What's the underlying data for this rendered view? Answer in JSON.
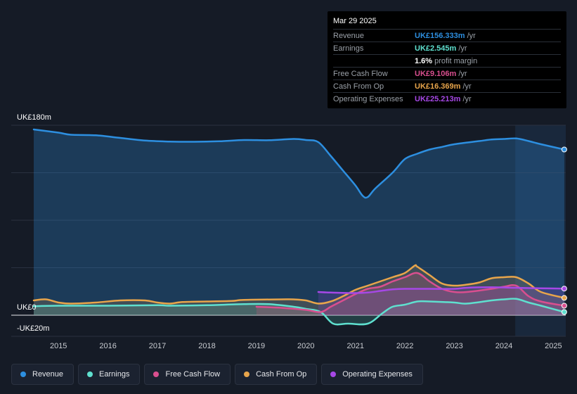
{
  "tooltip": {
    "date": "Mar 29 2025",
    "rows": [
      {
        "label": "Revenue",
        "value": "UK£156.333m",
        "unit": "/yr",
        "color": "#2d8fe0"
      },
      {
        "label": "Earnings",
        "value": "UK£2.545m",
        "unit": "/yr",
        "color": "#5fe0cf"
      },
      {
        "label": "",
        "value": "1.6%",
        "unit": "profit margin",
        "color": "#ffffff"
      },
      {
        "label": "Free Cash Flow",
        "value": "UK£9.106m",
        "unit": "/yr",
        "color": "#d94f8f"
      },
      {
        "label": "Cash From Op",
        "value": "UK£16.369m",
        "unit": "/yr",
        "color": "#e8a54b"
      },
      {
        "label": "Operating Expenses",
        "value": "UK£25.213m",
        "unit": "/yr",
        "color": "#a648e6"
      }
    ]
  },
  "chart_data": {
    "type": "line",
    "title": "",
    "xlabel": "",
    "ylabel": "",
    "ylim": [
      -20,
      180
    ],
    "y_tick_labels": [
      "UK£180m",
      "UK£0",
      "-UK£20m"
    ],
    "x_ticks": [
      2015,
      2016,
      2017,
      2018,
      2019,
      2020,
      2021,
      2022,
      2023,
      2024,
      2025
    ],
    "x_tick_labels": [
      "2015",
      "2016",
      "2017",
      "2018",
      "2019",
      "2020",
      "2021",
      "2022",
      "2023",
      "2024",
      "2025"
    ],
    "x_range": [
      2014.5,
      2025.25
    ],
    "highlight_from": 2024.23,
    "series": [
      {
        "name": "Revenue",
        "color": "#2d8fe0",
        "fill": true,
        "points": [
          [
            2014.5,
            176
          ],
          [
            2015.0,
            173
          ],
          [
            2015.25,
            171
          ],
          [
            2015.75,
            170.5
          ],
          [
            2016.25,
            168
          ],
          [
            2016.75,
            165.5
          ],
          [
            2017.25,
            164.5
          ],
          [
            2017.75,
            164.3
          ],
          [
            2018.25,
            164.8
          ],
          [
            2018.75,
            166
          ],
          [
            2019.25,
            165.8
          ],
          [
            2019.75,
            167
          ],
          [
            2020.0,
            166
          ],
          [
            2020.25,
            164
          ],
          [
            2020.5,
            151
          ],
          [
            2020.75,
            137
          ],
          [
            2021.0,
            123
          ],
          [
            2021.15,
            113
          ],
          [
            2021.25,
            112
          ],
          [
            2021.4,
            120
          ],
          [
            2021.75,
            135
          ],
          [
            2022.0,
            148
          ],
          [
            2022.25,
            153
          ],
          [
            2022.5,
            157
          ],
          [
            2022.75,
            159.5
          ],
          [
            2023.0,
            162
          ],
          [
            2023.5,
            165
          ],
          [
            2023.75,
            166.5
          ],
          [
            2024.0,
            167
          ],
          [
            2024.25,
            167.5
          ],
          [
            2024.5,
            165
          ],
          [
            2024.75,
            162
          ],
          [
            2025.22,
            157
          ]
        ]
      },
      {
        "name": "Earnings",
        "color": "#5fe0cf",
        "fill": true,
        "points": [
          [
            2014.5,
            8.5
          ],
          [
            2015.0,
            9
          ],
          [
            2016.0,
            9
          ],
          [
            2017.0,
            9.5
          ],
          [
            2017.25,
            9
          ],
          [
            2018.0,
            9.5
          ],
          [
            2018.75,
            10.5
          ],
          [
            2019.25,
            10.5
          ],
          [
            2019.75,
            8
          ],
          [
            2020.0,
            6
          ],
          [
            2020.3,
            3
          ],
          [
            2020.55,
            -8
          ],
          [
            2020.85,
            -8
          ],
          [
            2021.25,
            -8
          ],
          [
            2021.55,
            2
          ],
          [
            2021.75,
            8
          ],
          [
            2022.0,
            10
          ],
          [
            2022.25,
            13
          ],
          [
            2022.5,
            13
          ],
          [
            2023.0,
            12
          ],
          [
            2023.25,
            11
          ],
          [
            2023.75,
            14
          ],
          [
            2024.0,
            15
          ],
          [
            2024.25,
            15.5
          ],
          [
            2024.5,
            12
          ],
          [
            2024.75,
            9
          ],
          [
            2025.22,
            3
          ]
        ]
      },
      {
        "name": "Free Cash Flow",
        "color": "#d94f8f",
        "fill": true,
        "points": [
          [
            2019.0,
            8
          ],
          [
            2019.5,
            7
          ],
          [
            2020.0,
            5
          ],
          [
            2020.3,
            3
          ],
          [
            2020.5,
            8
          ],
          [
            2020.75,
            14
          ],
          [
            2021.0,
            20
          ],
          [
            2021.25,
            25
          ],
          [
            2021.5,
            27
          ],
          [
            2021.75,
            32
          ],
          [
            2022.0,
            36
          ],
          [
            2022.25,
            40
          ],
          [
            2022.5,
            32
          ],
          [
            2022.75,
            25
          ],
          [
            2023.0,
            22
          ],
          [
            2023.25,
            22
          ],
          [
            2023.75,
            25
          ],
          [
            2024.0,
            27
          ],
          [
            2024.25,
            28
          ],
          [
            2024.5,
            18
          ],
          [
            2024.75,
            13
          ],
          [
            2025.22,
            9
          ]
        ]
      },
      {
        "name": "Cash From Op",
        "color": "#e8a54b",
        "fill": true,
        "points": [
          [
            2014.5,
            14
          ],
          [
            2014.75,
            15
          ],
          [
            2015.0,
            12
          ],
          [
            2015.25,
            11
          ],
          [
            2015.75,
            12
          ],
          [
            2016.25,
            14
          ],
          [
            2016.75,
            14
          ],
          [
            2017.0,
            12
          ],
          [
            2017.25,
            11
          ],
          [
            2017.5,
            12.5
          ],
          [
            2018.0,
            13
          ],
          [
            2018.5,
            13.5
          ],
          [
            2018.75,
            14.5
          ],
          [
            2019.5,
            15
          ],
          [
            2019.75,
            15
          ],
          [
            2020.0,
            14
          ],
          [
            2020.25,
            11
          ],
          [
            2020.5,
            13
          ],
          [
            2020.75,
            18
          ],
          [
            2021.0,
            24
          ],
          [
            2021.25,
            28
          ],
          [
            2021.75,
            36
          ],
          [
            2022.0,
            40
          ],
          [
            2022.2,
            47
          ],
          [
            2022.25,
            46
          ],
          [
            2022.5,
            38
          ],
          [
            2022.75,
            30
          ],
          [
            2023.0,
            28
          ],
          [
            2023.25,
            29
          ],
          [
            2023.5,
            31
          ],
          [
            2023.75,
            35
          ],
          [
            2024.0,
            36
          ],
          [
            2024.25,
            36
          ],
          [
            2024.5,
            30
          ],
          [
            2024.75,
            22
          ],
          [
            2025.22,
            16.4
          ]
        ]
      },
      {
        "name": "Operating Expenses",
        "color": "#a648e6",
        "fill": true,
        "points": [
          [
            2020.25,
            22
          ],
          [
            2020.5,
            21.5
          ],
          [
            2021.0,
            21
          ],
          [
            2021.25,
            21.5
          ],
          [
            2021.5,
            23
          ],
          [
            2021.75,
            24.5
          ],
          [
            2022.0,
            25
          ],
          [
            2022.5,
            25
          ],
          [
            2023.0,
            25
          ],
          [
            2023.25,
            26
          ],
          [
            2023.75,
            26.5
          ],
          [
            2024.25,
            26
          ],
          [
            2024.75,
            25.5
          ],
          [
            2025.22,
            25.2
          ]
        ]
      }
    ]
  },
  "legend": [
    {
      "label": "Revenue",
      "color": "#2d8fe0"
    },
    {
      "label": "Earnings",
      "color": "#5fe0cf"
    },
    {
      "label": "Free Cash Flow",
      "color": "#d94f8f"
    },
    {
      "label": "Cash From Op",
      "color": "#e8a54b"
    },
    {
      "label": "Operating Expenses",
      "color": "#a648e6"
    }
  ]
}
